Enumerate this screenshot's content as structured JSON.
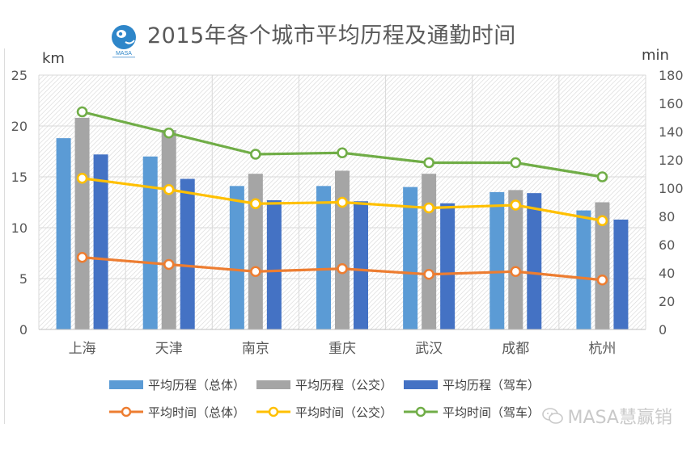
{
  "title": "2015年各个城市平均历程及通勤时间",
  "logo": {
    "text": "MASA"
  },
  "units": {
    "left": "km",
    "right": "min"
  },
  "watermark": "MASA慧赢销",
  "colors": {
    "bar_total": "#5B9BD5",
    "bar_bus": "#A5A5A5",
    "bar_car": "#4472C4",
    "line_total": "#ED7D31",
    "line_bus": "#FFC000",
    "line_car": "#70AD47",
    "grid": "#d9d9d9",
    "axis_text": "#595959"
  },
  "chart_data": {
    "type": "bar",
    "title": "2015年各个城市平均历程及通勤时间",
    "categories": [
      "上海",
      "天津",
      "南京",
      "重庆",
      "武汉",
      "成都",
      "杭州"
    ],
    "y_left": {
      "label": "km",
      "range": [
        0,
        25
      ],
      "ticks": [
        0,
        5,
        10,
        15,
        20,
        25
      ]
    },
    "y_right": {
      "label": "min",
      "range": [
        0,
        180
      ],
      "ticks": [
        0,
        20,
        40,
        60,
        80,
        100,
        120,
        140,
        160,
        180
      ]
    },
    "bar_series": [
      {
        "name": "平均历程（总体）",
        "axis": "left",
        "values": [
          18.8,
          17.0,
          14.1,
          14.1,
          14.0,
          13.5,
          11.7
        ]
      },
      {
        "name": "平均历程（公交）",
        "axis": "left",
        "values": [
          20.8,
          19.6,
          15.3,
          15.6,
          15.3,
          13.7,
          12.5
        ]
      },
      {
        "name": "平均历程（驾车）",
        "axis": "left",
        "values": [
          17.2,
          14.8,
          12.7,
          12.6,
          12.4,
          13.4,
          10.8
        ]
      }
    ],
    "line_series": [
      {
        "name": "平均时间（总体）",
        "axis": "right",
        "values": [
          51,
          46,
          41,
          43,
          39,
          41,
          35
        ]
      },
      {
        "name": "平均时间（公交）",
        "axis": "right",
        "values": [
          107,
          99,
          89,
          90,
          86,
          88,
          77
        ]
      },
      {
        "name": "平均时间（驾车）",
        "axis": "right",
        "values": [
          154,
          139,
          124,
          125,
          118,
          118,
          108
        ]
      }
    ],
    "grid": true,
    "legend_position": "bottom"
  }
}
